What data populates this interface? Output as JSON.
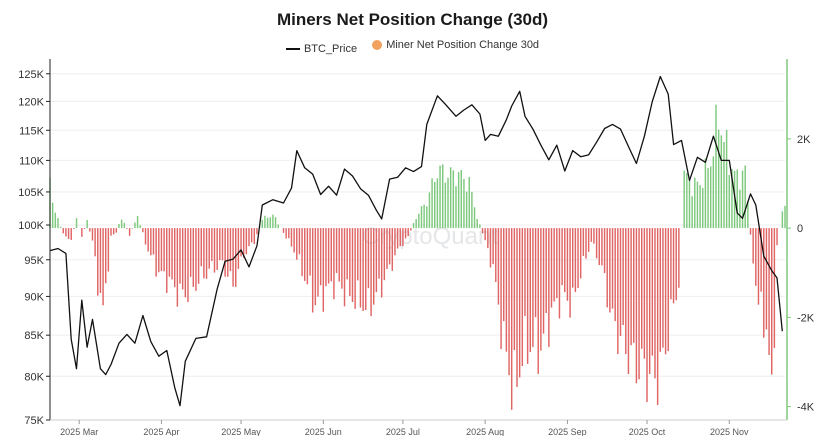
{
  "chart_data": {
    "type": "bar+line",
    "title": "Miners Net Position Change (30d)",
    "legend": [
      {
        "label": "BTC_Price",
        "style": "line",
        "color": "#111111"
      },
      {
        "label": "Miner Net Position Change 30d",
        "style": "dot",
        "color": "#f0a25e"
      }
    ],
    "watermark": "CryptoQuant",
    "x_start": "2025-02-18",
    "x_end": "2025-11-22",
    "x_ticks": [
      {
        "label": "2025 Mar",
        "date": "2025-03-01"
      },
      {
        "label": "2025 Apr",
        "date": "2025-04-01"
      },
      {
        "label": "2025 May",
        "date": "2025-05-01"
      },
      {
        "label": "2025 Jun",
        "date": "2025-06-01"
      },
      {
        "label": "2025 Jul",
        "date": "2025-07-01"
      },
      {
        "label": "2025 Aug",
        "date": "2025-08-01"
      },
      {
        "label": "2025 Sep",
        "date": "2025-09-01"
      },
      {
        "label": "2025 Oct",
        "date": "2025-10-01"
      },
      {
        "label": "2025 Nov",
        "date": "2025-11-01"
      }
    ],
    "y_left": {
      "name": "BTC_Price",
      "scale": "log",
      "range": [
        75000,
        127000
      ],
      "ticks": [
        {
          "value": 75000,
          "label": "75K"
        },
        {
          "value": 80000,
          "label": "80K"
        },
        {
          "value": 85000,
          "label": "85K"
        },
        {
          "value": 90000,
          "label": "90K"
        },
        {
          "value": 95000,
          "label": "95K"
        },
        {
          "value": 100000,
          "label": "100K"
        },
        {
          "value": 105000,
          "label": "105K"
        },
        {
          "value": 110000,
          "label": "110K"
        },
        {
          "value": 115000,
          "label": "115K"
        },
        {
          "value": 120000,
          "label": "120K"
        },
        {
          "value": 125000,
          "label": "125K"
        }
      ]
    },
    "y_right": {
      "name": "Miner Net Position Change 30d",
      "range": [
        -4300,
        3700
      ],
      "ticks": [
        {
          "value": 2000,
          "label": "2K"
        },
        {
          "value": 0,
          "label": "0"
        },
        {
          "value": -2000,
          "label": "-2K"
        },
        {
          "value": -4000,
          "label": "-4K"
        }
      ]
    },
    "positive_color": "#7fc97f",
    "negative_color": "#e06666",
    "price_anchors": [
      [
        "2025-02-18",
        96300
      ],
      [
        "2025-02-21",
        96600
      ],
      [
        "2025-02-24",
        95900
      ],
      [
        "2025-02-26",
        84500
      ],
      [
        "2025-02-28",
        80900
      ],
      [
        "2025-03-02",
        89500
      ],
      [
        "2025-03-04",
        83500
      ],
      [
        "2025-03-06",
        87000
      ],
      [
        "2025-03-09",
        80900
      ],
      [
        "2025-03-11",
        80200
      ],
      [
        "2025-03-13",
        81400
      ],
      [
        "2025-03-16",
        84000
      ],
      [
        "2025-03-19",
        85100
      ],
      [
        "2025-03-22",
        84000
      ],
      [
        "2025-03-25",
        87500
      ],
      [
        "2025-03-28",
        84200
      ],
      [
        "2025-03-31",
        82400
      ],
      [
        "2025-04-03",
        83100
      ],
      [
        "2025-04-06",
        78700
      ],
      [
        "2025-04-08",
        76600
      ],
      [
        "2025-04-10",
        81800
      ],
      [
        "2025-04-14",
        84600
      ],
      [
        "2025-04-18",
        84800
      ],
      [
        "2025-04-22",
        91000
      ],
      [
        "2025-04-25",
        94800
      ],
      [
        "2025-04-28",
        95100
      ],
      [
        "2025-05-01",
        96400
      ],
      [
        "2025-05-04",
        94000
      ],
      [
        "2025-05-07",
        97000
      ],
      [
        "2025-05-09",
        103000
      ],
      [
        "2025-05-13",
        103800
      ],
      [
        "2025-05-17",
        103300
      ],
      [
        "2025-05-20",
        105600
      ],
      [
        "2025-05-22",
        111600
      ],
      [
        "2025-05-25",
        108800
      ],
      [
        "2025-05-28",
        107800
      ],
      [
        "2025-05-31",
        104600
      ],
      [
        "2025-06-03",
        105900
      ],
      [
        "2025-06-06",
        104500
      ],
      [
        "2025-06-09",
        108600
      ],
      [
        "2025-06-12",
        107500
      ],
      [
        "2025-06-15",
        105500
      ],
      [
        "2025-06-18",
        104500
      ],
      [
        "2025-06-21",
        102200
      ],
      [
        "2025-06-23",
        100900
      ],
      [
        "2025-06-26",
        107000
      ],
      [
        "2025-06-29",
        107300
      ],
      [
        "2025-07-02",
        108800
      ],
      [
        "2025-07-05",
        108200
      ],
      [
        "2025-07-08",
        109000
      ],
      [
        "2025-07-10",
        116000
      ],
      [
        "2025-07-14",
        121000
      ],
      [
        "2025-07-17",
        119500
      ],
      [
        "2025-07-21",
        117400
      ],
      [
        "2025-07-24",
        118500
      ],
      [
        "2025-07-27",
        119400
      ],
      [
        "2025-07-30",
        117800
      ],
      [
        "2025-08-01",
        113300
      ],
      [
        "2025-08-03",
        114300
      ],
      [
        "2025-08-06",
        114000
      ],
      [
        "2025-08-09",
        116800
      ],
      [
        "2025-08-11",
        119200
      ],
      [
        "2025-08-14",
        121800
      ],
      [
        "2025-08-16",
        117400
      ],
      [
        "2025-08-19",
        115200
      ],
      [
        "2025-08-22",
        112500
      ],
      [
        "2025-08-25",
        110100
      ],
      [
        "2025-08-28",
        112500
      ],
      [
        "2025-08-31",
        108300
      ],
      [
        "2025-09-03",
        111600
      ],
      [
        "2025-09-06",
        110600
      ],
      [
        "2025-09-09",
        110900
      ],
      [
        "2025-09-12",
        113000
      ],
      [
        "2025-09-15",
        115300
      ],
      [
        "2025-09-18",
        116000
      ],
      [
        "2025-09-21",
        115200
      ],
      [
        "2025-09-24",
        112300
      ],
      [
        "2025-09-27",
        109500
      ],
      [
        "2025-09-30",
        114000
      ],
      [
        "2025-10-03",
        120000
      ],
      [
        "2025-10-06",
        124500
      ],
      [
        "2025-10-09",
        121300
      ],
      [
        "2025-10-11",
        112600
      ],
      [
        "2025-10-14",
        113300
      ],
      [
        "2025-10-17",
        106800
      ],
      [
        "2025-10-20",
        110500
      ],
      [
        "2025-10-23",
        109700
      ],
      [
        "2025-10-26",
        114000
      ],
      [
        "2025-10-29",
        110000
      ],
      [
        "2025-11-01",
        110000
      ],
      [
        "2025-11-04",
        101800
      ],
      [
        "2025-11-06",
        101000
      ],
      [
        "2025-11-09",
        104700
      ],
      [
        "2025-11-11",
        103000
      ],
      [
        "2025-11-14",
        95500
      ],
      [
        "2025-11-17",
        93500
      ],
      [
        "2025-11-19",
        92500
      ],
      [
        "2025-11-21",
        85500
      ]
    ],
    "position_anchors": [
      [
        "2025-02-18",
        950
      ],
      [
        "2025-02-20",
        380
      ],
      [
        "2025-02-23",
        -150
      ],
      [
        "2025-02-26",
        -250
      ],
      [
        "2025-02-28",
        200
      ],
      [
        "2025-03-02",
        -200
      ],
      [
        "2025-03-04",
        150
      ],
      [
        "2025-03-06",
        -300
      ],
      [
        "2025-03-08",
        -1200
      ],
      [
        "2025-03-10",
        -1900
      ],
      [
        "2025-03-13",
        -200
      ],
      [
        "2025-03-15",
        -100
      ],
      [
        "2025-03-17",
        250
      ],
      [
        "2025-03-20",
        -150
      ],
      [
        "2025-03-23",
        250
      ],
      [
        "2025-03-27",
        -500
      ],
      [
        "2025-03-31",
        -1000
      ],
      [
        "2025-04-04",
        -1200
      ],
      [
        "2025-04-08",
        -1500
      ],
      [
        "2025-04-12",
        -1400
      ],
      [
        "2025-04-16",
        -1100
      ],
      [
        "2025-04-20",
        -900
      ],
      [
        "2025-04-24",
        -800
      ],
      [
        "2025-04-28",
        -1300
      ],
      [
        "2025-05-02",
        -600
      ],
      [
        "2025-05-06",
        -300
      ],
      [
        "2025-05-09",
        200
      ],
      [
        "2025-05-13",
        300
      ],
      [
        "2025-05-17",
        -100
      ],
      [
        "2025-05-21",
        -500
      ],
      [
        "2025-05-25",
        -1100
      ],
      [
        "2025-05-29",
        -1700
      ],
      [
        "2025-06-02",
        -1400
      ],
      [
        "2025-06-06",
        -1200
      ],
      [
        "2025-06-10",
        -1500
      ],
      [
        "2025-06-14",
        -1600
      ],
      [
        "2025-06-18",
        -1800
      ],
      [
        "2025-06-22",
        -1400
      ],
      [
        "2025-06-26",
        -900
      ],
      [
        "2025-06-30",
        -400
      ],
      [
        "2025-07-03",
        -200
      ],
      [
        "2025-07-06",
        250
      ],
      [
        "2025-07-10",
        600
      ],
      [
        "2025-07-14",
        1300
      ],
      [
        "2025-07-18",
        1200
      ],
      [
        "2025-07-22",
        1200
      ],
      [
        "2025-07-26",
        1000
      ],
      [
        "2025-07-29",
        250
      ],
      [
        "2025-08-01",
        -300
      ],
      [
        "2025-08-04",
        -900
      ],
      [
        "2025-08-08",
        -2600
      ],
      [
        "2025-08-12",
        -3700
      ],
      [
        "2025-08-15",
        -2800
      ],
      [
        "2025-08-18",
        -2600
      ],
      [
        "2025-08-22",
        -2700
      ],
      [
        "2025-08-26",
        -1900
      ],
      [
        "2025-08-30",
        -1500
      ],
      [
        "2025-09-03",
        -1700
      ],
      [
        "2025-09-06",
        -1000
      ],
      [
        "2025-09-10",
        -300
      ],
      [
        "2025-09-14",
        -900
      ],
      [
        "2025-09-18",
        -2100
      ],
      [
        "2025-09-22",
        -2600
      ],
      [
        "2025-09-26",
        -3000
      ],
      [
        "2025-09-30",
        -3200
      ],
      [
        "2025-10-04",
        -3400
      ],
      [
        "2025-10-07",
        -3000
      ],
      [
        "2025-10-10",
        -2000
      ],
      [
        "2025-10-13",
        -1200
      ],
      [
        "2025-10-15",
        1200
      ],
      [
        "2025-10-18",
        950
      ],
      [
        "2025-10-21",
        1000
      ],
      [
        "2025-10-25",
        1500
      ],
      [
        "2025-10-28",
        2500
      ],
      [
        "2025-11-01",
        1500
      ],
      [
        "2025-11-04",
        1100
      ],
      [
        "2025-11-07",
        1300
      ],
      [
        "2025-11-09",
        -200
      ],
      [
        "2025-11-12",
        -1700
      ],
      [
        "2025-11-15",
        -2200
      ],
      [
        "2025-11-17",
        -3900
      ],
      [
        "2025-11-19",
        -400
      ],
      [
        "2025-11-21",
        400
      ]
    ]
  }
}
